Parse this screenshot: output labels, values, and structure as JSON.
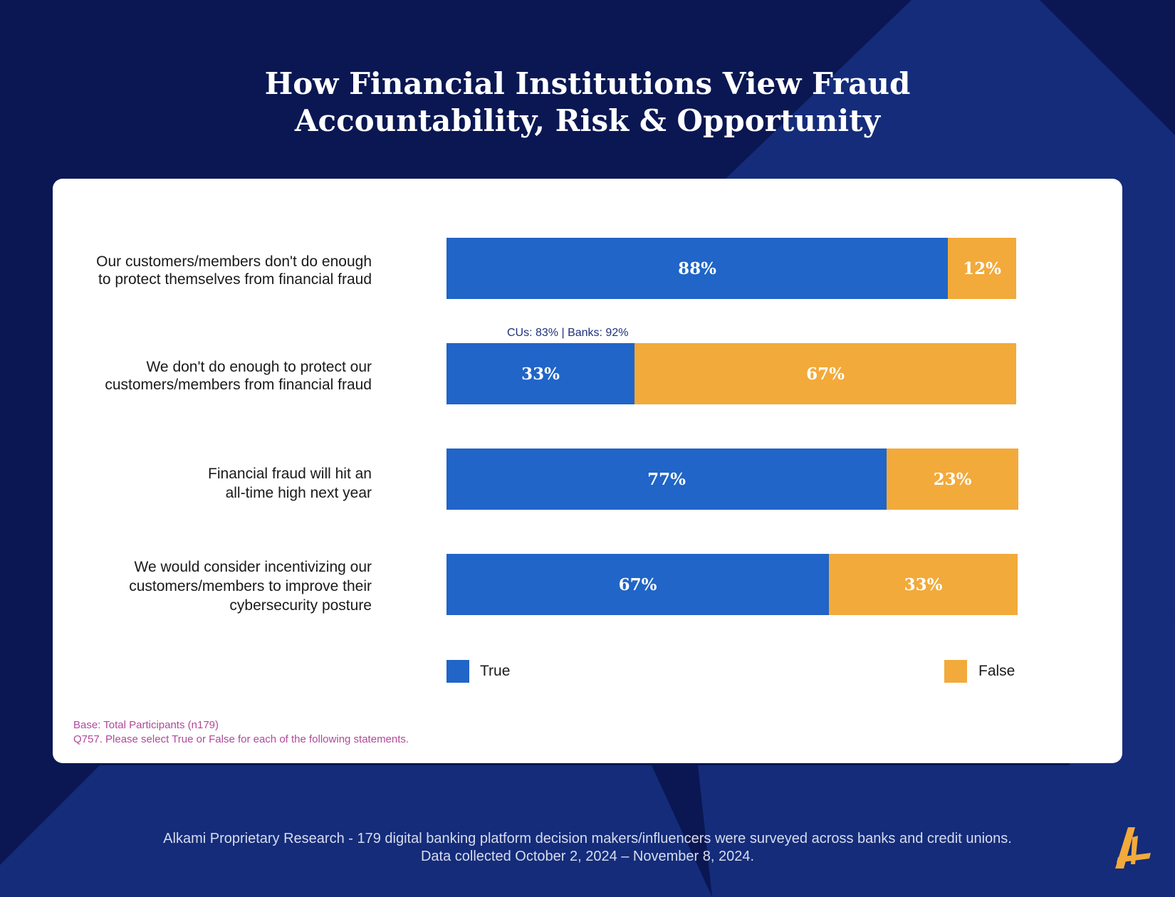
{
  "title_lines": [
    "How Financial Institutions View Fraud",
    "Accountability, Risk & Opportunity"
  ],
  "colors": {
    "background": "#0a1752",
    "background_stripe": "#142c7a",
    "true": "#2065c7",
    "false": "#f2aa3b",
    "note": "#1d2f7a",
    "base_note": "#b2489a",
    "logo": "#f2aa3b"
  },
  "chart_data": {
    "type": "bar",
    "orientation": "horizontal",
    "stacked": true,
    "categories": [
      [
        "Our customers/members don't do enough",
        "to protect themselves from financial fraud"
      ],
      [
        "We don't do enough to protect our",
        "customers/members from financial fraud"
      ],
      [
        "Financial fraud will hit an",
        "all-time high next year"
      ],
      [
        "We would consider incentivizing our",
        "customers/members to improve their",
        "cybersecurity posture"
      ]
    ],
    "series": [
      {
        "name": "True",
        "values": [
          88,
          33,
          77,
          67
        ],
        "labels": [
          "88%",
          "33%",
          "77%",
          "67%"
        ]
      },
      {
        "name": "False",
        "values": [
          12,
          67,
          23,
          33
        ],
        "labels": [
          "12%",
          "67%",
          "23%",
          "33%"
        ]
      }
    ],
    "annotations": [
      "CUs: 83% | Banks: 92%"
    ],
    "xlim": [
      0,
      100
    ],
    "legend": "bottom",
    "grid": false
  },
  "notes": {
    "base": "Base: Total Participants (n179)",
    "question": "Q757. Please select True or False for each of the following statements."
  },
  "footer": {
    "line1": "Alkami Proprietary Research - 179 digital banking platform decision makers/influencers were surveyed across banks and credit unions.",
    "line2": "Data collected October 2, 2024 – November 8, 2024."
  },
  "logo_icon": "alkami-a-logo-icon"
}
